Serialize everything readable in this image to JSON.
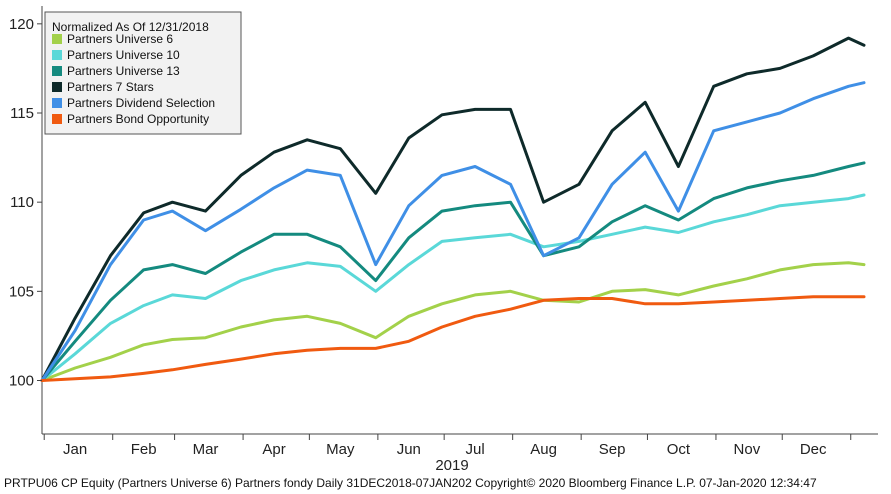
{
  "chart_data": {
    "type": "line",
    "title": "",
    "xlabel": "2019",
    "ylabel": "",
    "ylim": [
      97,
      121
    ],
    "yticks": [
      100,
      105,
      110,
      115,
      120
    ],
    "grid": false,
    "legend_placement": "top-left",
    "legend_title": "Normalized As Of 12/31/2018",
    "x_ticks": [
      "Jan",
      "Feb",
      "Mar",
      "Apr",
      "May",
      "Jun",
      "Jul",
      "Aug",
      "Sep",
      "Oct",
      "Nov",
      "Dec"
    ],
    "x": [
      "2018-12-31",
      "2019-01-15",
      "2019-01-31",
      "2019-02-15",
      "2019-02-28",
      "2019-03-15",
      "2019-03-31",
      "2019-04-15",
      "2019-04-30",
      "2019-05-15",
      "2019-05-31",
      "2019-06-15",
      "2019-06-30",
      "2019-07-15",
      "2019-07-31",
      "2019-08-15",
      "2019-08-31",
      "2019-09-15",
      "2019-09-30",
      "2019-10-15",
      "2019-10-31",
      "2019-11-15",
      "2019-11-30",
      "2019-12-15",
      "2019-12-31",
      "2020-01-07"
    ],
    "series": [
      {
        "name": "Partners Universe 6",
        "color": "#a3d14a",
        "values": [
          100,
          100.7,
          101.3,
          102.0,
          102.3,
          102.4,
          103.0,
          103.4,
          103.6,
          103.2,
          102.4,
          103.6,
          104.3,
          104.8,
          105.0,
          104.5,
          104.4,
          105.0,
          105.1,
          104.8,
          105.3,
          105.7,
          106.2,
          106.5,
          106.6,
          106.5
        ]
      },
      {
        "name": "Partners Universe 10",
        "color": "#5ad8d8",
        "values": [
          100,
          101.5,
          103.2,
          104.2,
          104.8,
          104.6,
          105.6,
          106.2,
          106.6,
          106.4,
          105.0,
          106.5,
          107.8,
          108.0,
          108.2,
          107.5,
          107.8,
          108.2,
          108.6,
          108.3,
          108.9,
          109.3,
          109.8,
          110.0,
          110.2,
          110.4
        ]
      },
      {
        "name": "Partners Universe 13",
        "color": "#148a7f",
        "values": [
          100,
          102.2,
          104.5,
          106.2,
          106.5,
          106.0,
          107.2,
          108.2,
          108.2,
          107.5,
          105.6,
          108.0,
          109.5,
          109.8,
          110.0,
          107.0,
          107.5,
          108.9,
          109.8,
          109.0,
          110.2,
          110.8,
          111.2,
          111.5,
          112.0,
          112.2
        ]
      },
      {
        "name": "Partners 7 Stars",
        "color": "#0e2a2a",
        "values": [
          100,
          103.5,
          107.0,
          109.4,
          110.0,
          109.5,
          111.5,
          112.8,
          113.5,
          113.0,
          110.5,
          113.6,
          114.9,
          115.2,
          115.2,
          110.0,
          111.0,
          114.0,
          115.6,
          112.0,
          116.5,
          117.2,
          117.5,
          118.2,
          119.2,
          118.8
        ]
      },
      {
        "name": "Partners Dividend Selection",
        "color": "#3f8fe6",
        "values": [
          100,
          102.8,
          106.5,
          109.0,
          109.5,
          108.4,
          109.6,
          110.8,
          111.8,
          111.5,
          106.5,
          109.8,
          111.5,
          112.0,
          111.0,
          107.0,
          108.0,
          111.0,
          112.8,
          109.5,
          114.0,
          114.5,
          115.0,
          115.8,
          116.5,
          116.7
        ]
      },
      {
        "name": "Partners Bond Opportunity",
        "color": "#f05a10",
        "values": [
          100,
          100.1,
          100.2,
          100.4,
          100.6,
          100.9,
          101.2,
          101.5,
          101.7,
          101.8,
          101.8,
          102.2,
          103.0,
          103.6,
          104.0,
          104.5,
          104.6,
          104.6,
          104.3,
          104.3,
          104.4,
          104.5,
          104.6,
          104.7,
          104.7,
          104.7
        ]
      }
    ]
  },
  "footer": {
    "text": "PRTPU06 CP Equity (Partners Universe 6) Partners fondy  Daily 31DEC2018-07JAN202 Copyright© 2020 Bloomberg Finance L.P. 07-Jan-2020 12:34:47"
  }
}
